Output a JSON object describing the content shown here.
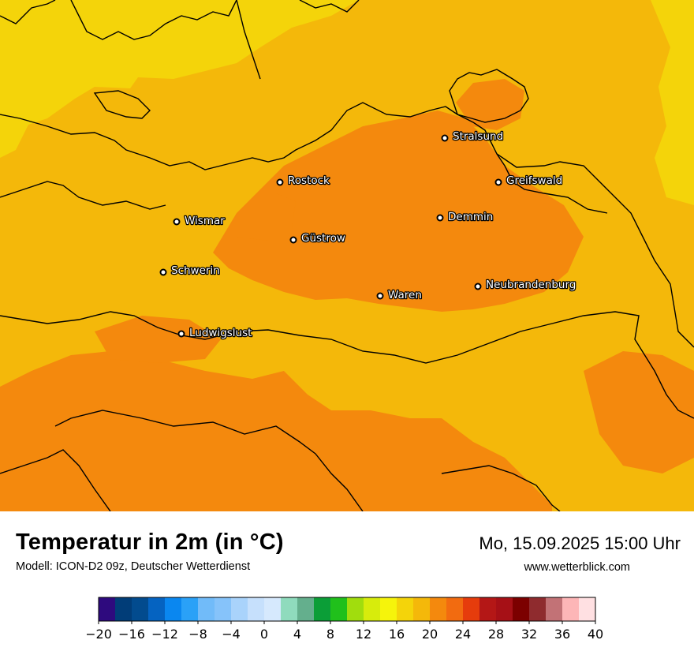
{
  "map": {
    "cities": [
      {
        "name": "Stralsund"
      },
      {
        "name": "Rostock"
      },
      {
        "name": "Greifswald"
      },
      {
        "name": "Wismar"
      },
      {
        "name": "Demmin"
      },
      {
        "name": "Güstrow"
      },
      {
        "name": "Schwerin"
      },
      {
        "name": "Neubrandenburg"
      },
      {
        "name": "Waren"
      },
      {
        "name": "Ludwigslust"
      }
    ]
  },
  "footer": {
    "title": "Temperatur in 2m (in °C)",
    "subtitle": "Modell: ICON-D2 09z, Deutscher Wetterdienst",
    "datetime": "Mo, 15.09.2025 15:00 Uhr",
    "website": "www.wetterblick.com"
  },
  "legend": {
    "ticks": [
      "−20",
      "−16",
      "−12",
      "−8",
      "−4",
      "0",
      "4",
      "8",
      "12",
      "16",
      "20",
      "24",
      "28",
      "32",
      "36",
      "40"
    ],
    "colors": [
      "#2e0a7e",
      "#013d78",
      "#024b8e",
      "#0563c1",
      "#0a87f0",
      "#2aa1f7",
      "#71bbf9",
      "#86c3fa",
      "#a9d3fb",
      "#c6e0fc",
      "#d6e9fd",
      "#8fdbbd",
      "#64af8d",
      "#0b9e37",
      "#20c01b",
      "#a1dd0d",
      "#d7ec0c",
      "#f6f40b",
      "#f4d40a",
      "#f4b80a",
      "#f4890d",
      "#f26b10",
      "#e63c0c",
      "#b41716",
      "#a61016",
      "#7c0000",
      "#8f2b2e",
      "#c27276",
      "#fdb6b7",
      "#ffe0e2"
    ],
    "ticks_color": "#000000"
  },
  "temperature_colors": {
    "base": "#f4b80a",
    "warm": "#f4890d",
    "cool": "#f4d40a",
    "coastline": "#000000"
  }
}
